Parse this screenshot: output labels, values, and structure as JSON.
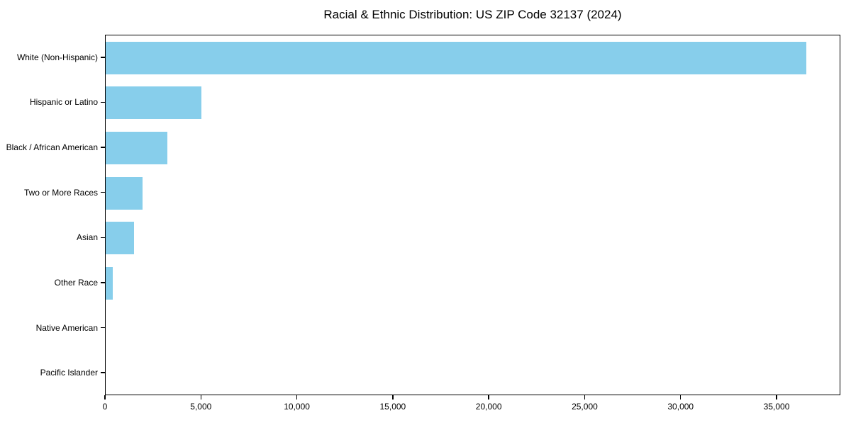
{
  "title": "Racial & Ethnic Distribution: US ZIP Code 32137 (2024)",
  "colors": {
    "bar": "#87CEEB",
    "axis": "#000000",
    "text": "#000000",
    "background": "#FFFFFF"
  },
  "chart_data": {
    "type": "bar",
    "orientation": "horizontal",
    "title": "Racial & Ethnic Distribution: US ZIP Code 32137 (2024)",
    "categories": [
      "White (Non-Hispanic)",
      "Hispanic or Latino",
      "Black / African American",
      "Two or More Races",
      "Asian",
      "Other Race",
      "Native American",
      "Pacific Islander"
    ],
    "values": [
      36500,
      4980,
      3215,
      1920,
      1470,
      380,
      0,
      0
    ],
    "xlabel": "",
    "ylabel": "",
    "xlim": [
      0,
      38325
    ],
    "xticks": [
      0,
      5000,
      10000,
      15000,
      20000,
      25000,
      30000,
      35000
    ],
    "xtick_labels": [
      "0",
      "5,000",
      "10,000",
      "15,000",
      "20,000",
      "25,000",
      "30,000",
      "35,000"
    ],
    "bar_color": "#87CEEB",
    "grid": false,
    "legend": null
  }
}
